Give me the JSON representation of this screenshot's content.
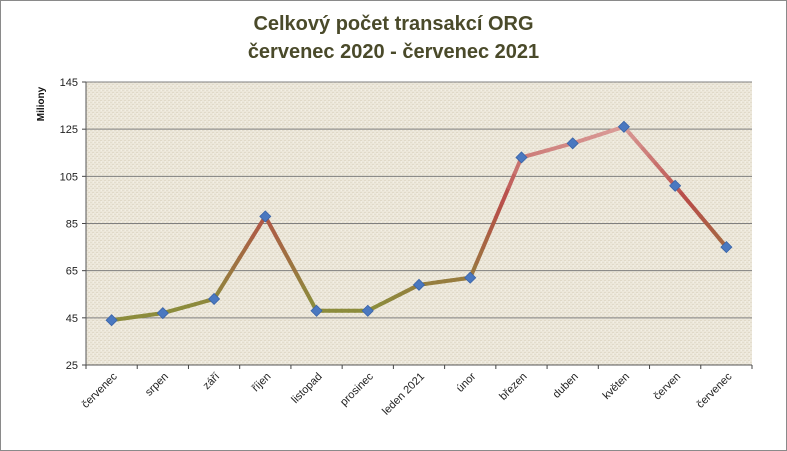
{
  "chart_data": {
    "type": "line",
    "title": "Celkový počet transakcí ORG",
    "subtitle": "červenec 2020 - červenec 2021",
    "ylabel": "Miliony",
    "xlabel": "",
    "ylim": [
      25,
      145
    ],
    "yticks": [
      25,
      45,
      65,
      85,
      105,
      125,
      145
    ],
    "grid": true,
    "legend": "none",
    "categories": [
      "červenec",
      "srpen",
      "září",
      "říjen",
      "listopad",
      "prosinec",
      "leden 2021",
      "únor",
      "březen",
      "duben",
      "květen",
      "červen",
      "červenec"
    ],
    "series": [
      {
        "values": [
          44,
          47,
          53,
          88,
          48,
          48,
          59,
          62,
          113,
          119,
          126,
          101,
          75
        ]
      }
    ],
    "colors": {
      "low": "#8c8c3c",
      "high": "#b84c48",
      "pale": "#d99a96",
      "marker": "#4a78c0",
      "plot_bg": "#ece7d9",
      "grid": "#7f7f7f"
    }
  }
}
